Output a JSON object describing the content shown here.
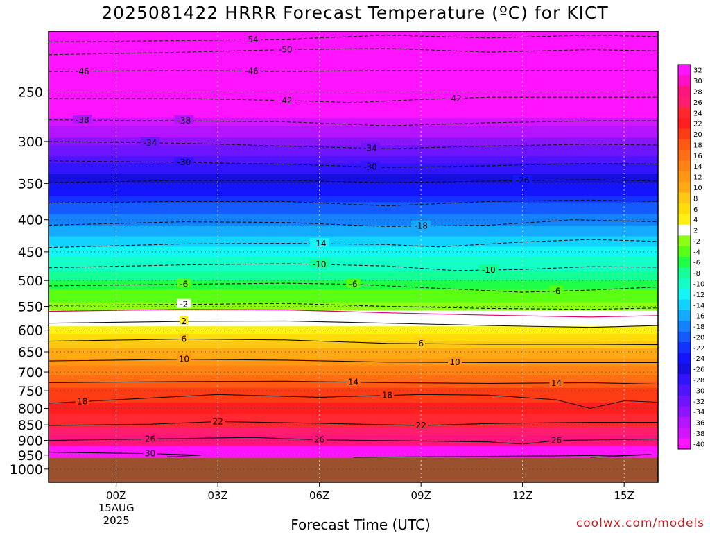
{
  "title": "2025081422 HRRR Forecast Temperature (ºC) for KICT",
  "xlabel": "Forecast Time (UTC)",
  "credit": "coolwx.com/models",
  "chart_data": {
    "type": "heatmap",
    "title": "2025081422 HRRR Forecast Temperature (ºC) for KICT",
    "xlabel": "Forecast Time (UTC)",
    "ylabel": "",
    "y_axis": "pressure (hPa), inverted, log-like",
    "xlim_hours": [
      -2,
      16
    ],
    "ylim_hpa": [
      1050,
      200
    ],
    "x_ticks": [
      {
        "hour": 0,
        "label": "00Z",
        "sub": [
          "15AUG",
          "2025"
        ]
      },
      {
        "hour": 3,
        "label": "03Z"
      },
      {
        "hour": 6,
        "label": "06Z"
      },
      {
        "hour": 9,
        "label": "09Z"
      },
      {
        "hour": 12,
        "label": "12Z"
      },
      {
        "hour": 15,
        "label": "15Z"
      }
    ],
    "y_ticks": [
      250,
      300,
      350,
      400,
      450,
      500,
      550,
      600,
      650,
      700,
      750,
      800,
      850,
      900,
      950,
      1000
    ],
    "surface_pressure_hpa": 960,
    "ground_color": "#99512e",
    "contour_interval_c": 4,
    "temperature_profile": [
      {
        "p": 200,
        "t": -56
      },
      {
        "p": 225,
        "t": -50
      },
      {
        "p": 250,
        "t": -45
      },
      {
        "p": 275,
        "t": -40
      },
      {
        "p": 300,
        "t": -35
      },
      {
        "p": 325,
        "t": -30
      },
      {
        "p": 350,
        "t": -26
      },
      {
        "p": 400,
        "t": -18.5
      },
      {
        "p": 450,
        "t": -13
      },
      {
        "p": 500,
        "t": -8
      },
      {
        "p": 550,
        "t": -3
      },
      {
        "p": 575,
        "t": 0
      },
      {
        "p": 600,
        "t": 3
      },
      {
        "p": 650,
        "t": 8.5
      },
      {
        "p": 700,
        "t": 13.5
      },
      {
        "p": 750,
        "t": 18.5
      },
      {
        "p": 800,
        "t": 21
      },
      {
        "p": 850,
        "t": 23.5
      },
      {
        "p": 900,
        "t": 27
      },
      {
        "p": 950,
        "t": 31
      }
    ],
    "contours": [
      {
        "t": -54,
        "label": "-54",
        "points": [
          [
            -2,
            208
          ],
          [
            2,
            207
          ],
          [
            5,
            206
          ],
          [
            8,
            203
          ],
          [
            11,
            205
          ],
          [
            14,
            203
          ],
          [
            16,
            204
          ]
        ],
        "labels_at": [
          4
        ]
      },
      {
        "t": -50,
        "label": "-50",
        "points": [
          [
            -2,
            218
          ],
          [
            2,
            216
          ],
          [
            5,
            214
          ],
          [
            8,
            213
          ],
          [
            11,
            216
          ],
          [
            14,
            214
          ],
          [
            16,
            215
          ]
        ],
        "labels_at": [
          5
        ]
      },
      {
        "t": -46,
        "label": "-46",
        "points": [
          [
            -2,
            232
          ],
          [
            2,
            231
          ],
          [
            5,
            232
          ],
          [
            8,
            231
          ],
          [
            11,
            231
          ],
          [
            14,
            231
          ],
          [
            16,
            231
          ]
        ],
        "labels_at": [
          -1,
          4
        ]
      },
      {
        "t": -42,
        "label": "-42",
        "points": [
          [
            -2,
            256
          ],
          [
            2,
            256
          ],
          [
            5,
            258
          ],
          [
            7,
            260
          ],
          [
            9,
            257
          ],
          [
            11,
            255
          ],
          [
            14,
            255
          ],
          [
            16,
            255
          ]
        ],
        "labels_at": [
          5,
          10
        ]
      },
      {
        "t": -38,
        "label": "-38",
        "points": [
          [
            -2,
            277
          ],
          [
            2,
            278
          ],
          [
            5,
            279
          ],
          [
            8,
            283
          ],
          [
            11,
            280
          ],
          [
            14,
            278
          ],
          [
            16,
            278
          ]
        ],
        "labels_at": [
          -1,
          2
        ]
      },
      {
        "t": -34,
        "label": "-34",
        "points": [
          [
            -2,
            300
          ],
          [
            2,
            302
          ],
          [
            5,
            305
          ],
          [
            8,
            308
          ],
          [
            11,
            305
          ],
          [
            14,
            303
          ],
          [
            16,
            304
          ]
        ],
        "labels_at": [
          1,
          7.5
        ]
      },
      {
        "t": -30,
        "label": "-30",
        "points": [
          [
            -2,
            322
          ],
          [
            2,
            324
          ],
          [
            5,
            326
          ],
          [
            8,
            330
          ],
          [
            11,
            328
          ],
          [
            14,
            325
          ],
          [
            16,
            326
          ]
        ],
        "labels_at": [
          2,
          7.5
        ]
      },
      {
        "t": -26,
        "label": "-26",
        "points": [
          [
            -2,
            349
          ],
          [
            2,
            346
          ],
          [
            5,
            346
          ],
          [
            8,
            349
          ],
          [
            11,
            347
          ],
          [
            14,
            345
          ],
          [
            16,
            347
          ]
        ],
        "labels_at": [
          12
        ]
      },
      {
        "t": -22,
        "label": "-22",
        "points": [
          [
            -2,
            376
          ],
          [
            2,
            374
          ],
          [
            5,
            374
          ],
          [
            8,
            380
          ],
          [
            11,
            374
          ],
          [
            14,
            372
          ],
          [
            16,
            374
          ]
        ],
        "labels_at": []
      },
      {
        "t": -18,
        "label": "-18",
        "points": [
          [
            -2,
            408
          ],
          [
            2,
            403
          ],
          [
            5,
            404
          ],
          [
            8,
            410
          ],
          [
            11,
            408
          ],
          [
            13.5,
            400
          ],
          [
            16,
            403
          ]
        ],
        "labels_at": [
          9
        ]
      },
      {
        "t": -14,
        "label": "-14",
        "points": [
          [
            -2,
            443
          ],
          [
            2,
            437
          ],
          [
            5,
            436
          ],
          [
            8,
            438
          ],
          [
            9.5,
            442
          ],
          [
            12,
            434
          ],
          [
            14,
            430
          ],
          [
            16,
            433
          ]
        ],
        "labels_at": [
          6
        ]
      },
      {
        "t": -10,
        "label": "-10",
        "points": [
          [
            -2,
            477
          ],
          [
            2,
            472
          ],
          [
            5,
            470
          ],
          [
            8,
            474
          ],
          [
            10,
            482
          ],
          [
            12,
            480
          ],
          [
            14,
            475
          ],
          [
            16,
            476
          ]
        ],
        "labels_at": [
          6,
          11
        ]
      },
      {
        "t": -6,
        "label": "-6",
        "points": [
          [
            -2,
            510
          ],
          [
            2,
            507
          ],
          [
            5,
            505
          ],
          [
            7,
            507
          ],
          [
            10,
            516
          ],
          [
            12,
            522
          ],
          [
            14,
            518
          ],
          [
            16,
            512
          ]
        ],
        "labels_at": [
          2,
          7,
          13
        ]
      },
      {
        "t": -2,
        "label": "-2",
        "points": [
          [
            -2,
            548
          ],
          [
            2,
            546
          ],
          [
            5,
            544
          ],
          [
            8,
            550
          ],
          [
            11,
            554
          ],
          [
            14,
            556
          ],
          [
            16,
            553
          ]
        ],
        "labels_at": [
          2
        ]
      },
      {
        "t": 2,
        "label": "2",
        "points": [
          [
            -2,
            585
          ],
          [
            2,
            581
          ],
          [
            5,
            580
          ],
          [
            8,
            585
          ],
          [
            11,
            590
          ],
          [
            14,
            594
          ],
          [
            16,
            590
          ]
        ],
        "labels_at": [
          2
        ]
      },
      {
        "t": 6,
        "label": "6",
        "points": [
          [
            -2,
            625
          ],
          [
            2,
            620
          ],
          [
            5,
            622
          ],
          [
            8,
            630
          ],
          [
            11,
            632
          ],
          [
            14,
            632
          ],
          [
            16,
            633
          ]
        ],
        "labels_at": [
          2,
          9
        ]
      },
      {
        "t": 10,
        "label": "10",
        "points": [
          [
            -2,
            672
          ],
          [
            2,
            668
          ],
          [
            5,
            670
          ],
          [
            8,
            675
          ],
          [
            11,
            676
          ],
          [
            14,
            676
          ],
          [
            16,
            676
          ]
        ],
        "labels_at": [
          2,
          10
        ]
      },
      {
        "t": 14,
        "label": "14",
        "points": [
          [
            -2,
            728
          ],
          [
            2,
            725
          ],
          [
            5,
            724
          ],
          [
            8,
            728
          ],
          [
            11,
            730
          ],
          [
            14,
            728
          ],
          [
            16,
            732
          ]
        ],
        "labels_at": [
          7,
          13
        ]
      },
      {
        "t": 18,
        "label": "18",
        "points": [
          [
            -2,
            785
          ],
          [
            1,
            770
          ],
          [
            3,
            760
          ],
          [
            6,
            768
          ],
          [
            9,
            760
          ],
          [
            11,
            762
          ],
          [
            13,
            775
          ],
          [
            14,
            800
          ],
          [
            15,
            778
          ],
          [
            16,
            782
          ]
        ],
        "labels_at": [
          -1,
          8
        ]
      },
      {
        "t": 22,
        "label": "22",
        "points": [
          [
            -2,
            852
          ],
          [
            1,
            848
          ],
          [
            3,
            840
          ],
          [
            6,
            845
          ],
          [
            9,
            852
          ],
          [
            11,
            846
          ],
          [
            14,
            842
          ],
          [
            16,
            842
          ]
        ],
        "labels_at": [
          3,
          9
        ]
      },
      {
        "t": 26,
        "label": "26",
        "points": [
          [
            -2,
            900
          ],
          [
            1,
            895
          ],
          [
            4,
            890
          ],
          [
            6,
            898
          ],
          [
            9,
            902
          ],
          [
            11,
            905
          ],
          [
            12,
            912
          ],
          [
            13,
            900
          ],
          [
            16,
            895
          ]
        ],
        "labels_at": [
          1,
          6,
          13
        ]
      },
      {
        "t": 30,
        "label": "30",
        "points": [
          [
            -2,
            940
          ],
          [
            1,
            945
          ],
          [
            2.5,
            950
          ],
          [
            1.5,
            956
          ]
        ],
        "labels_at": [
          1
        ]
      },
      {
        "t": 30,
        "label": "",
        "points": [
          [
            7,
            958
          ],
          [
            10,
            955
          ],
          [
            13,
            953
          ],
          [
            15,
            950
          ],
          [
            15.8,
            948
          ],
          [
            14,
            958
          ]
        ],
        "labels_at": []
      }
    ],
    "colorbar": [
      {
        "t": 32,
        "color": "#ff14ff"
      },
      {
        "t": 30,
        "color": "#ff0fc8"
      },
      {
        "t": 28,
        "color": "#ff147d"
      },
      {
        "t": 26,
        "color": "#ff1e6e"
      },
      {
        "t": 24,
        "color": "#ff2830"
      },
      {
        "t": 22,
        "color": "#ff1f1f"
      },
      {
        "t": 20,
        "color": "#ff3c14"
      },
      {
        "t": 18,
        "color": "#ff5a14"
      },
      {
        "t": 16,
        "color": "#ff6e14"
      },
      {
        "t": 14,
        "color": "#ff8214"
      },
      {
        "t": 12,
        "color": "#ff9614"
      },
      {
        "t": 10,
        "color": "#ffaa14"
      },
      {
        "t": 8,
        "color": "#ffc814"
      },
      {
        "t": 6,
        "color": "#ffdc0a"
      },
      {
        "t": 4,
        "color": "#fff014"
      },
      {
        "t": 2,
        "color": "#ffffff"
      },
      {
        "t": -2,
        "color": "#8cff14"
      },
      {
        "t": -4,
        "color": "#5aff14"
      },
      {
        "t": -6,
        "color": "#1eff46"
      },
      {
        "t": -8,
        "color": "#14ff96"
      },
      {
        "t": -10,
        "color": "#14ffc8"
      },
      {
        "t": -12,
        "color": "#14f5f5"
      },
      {
        "t": -14,
        "color": "#14d2ff"
      },
      {
        "t": -16,
        "color": "#14aaff"
      },
      {
        "t": -18,
        "color": "#1482ff"
      },
      {
        "t": -20,
        "color": "#145aff"
      },
      {
        "t": -22,
        "color": "#1432ff"
      },
      {
        "t": -24,
        "color": "#1414ff"
      },
      {
        "t": -26,
        "color": "#140fdc"
      },
      {
        "t": -28,
        "color": "#3214ff"
      },
      {
        "t": -30,
        "color": "#5014ff"
      },
      {
        "t": -32,
        "color": "#6e14ff"
      },
      {
        "t": -34,
        "color": "#8c14ff"
      },
      {
        "t": -36,
        "color": "#b414ff"
      },
      {
        "t": -38,
        "color": "#d214ff"
      },
      {
        "t": -40,
        "color": "#ff14ff"
      }
    ]
  }
}
